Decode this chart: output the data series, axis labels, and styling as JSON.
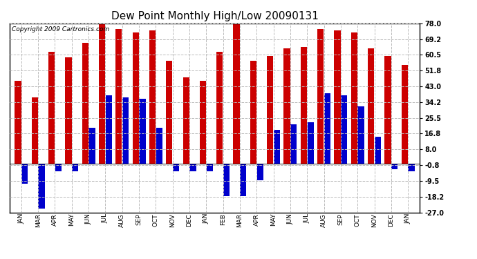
{
  "title": "Dew Point Monthly High/Low 20090131",
  "copyright": "Copyright 2009 Cartronics.com",
  "categories": [
    "JAN",
    "MAR",
    "APR",
    "MAY",
    "JUN",
    "JUL",
    "AUG",
    "SEP",
    "OCT",
    "NOV",
    "DEC",
    "JAN",
    "FEB",
    "MAR",
    "APR",
    "MAY",
    "JUN",
    "JUL",
    "AUG",
    "SEP",
    "OCT",
    "NOV",
    "DEC",
    "JAN"
  ],
  "high_values": [
    46,
    37,
    62,
    59,
    67,
    78,
    75,
    73,
    74,
    57,
    48,
    46,
    62,
    78,
    57,
    60,
    64,
    65,
    75,
    74,
    73,
    64,
    60,
    55
  ],
  "low_values": [
    -11,
    -25,
    -4,
    -4,
    20,
    38,
    37,
    36,
    20,
    -4,
    -4,
    -4,
    -18,
    -18,
    -9,
    19,
    22,
    23,
    39,
    38,
    32,
    15,
    -3,
    -4
  ],
  "bar_color_high": "#cc0000",
  "bar_color_low": "#0000cc",
  "background_color": "#ffffff",
  "grid_color": "#bbbbbb",
  "yticks": [
    -27.0,
    -18.2,
    -9.5,
    -0.8,
    8.0,
    16.8,
    25.5,
    34.2,
    43.0,
    51.8,
    60.5,
    69.2,
    78.0
  ],
  "ylim": [
    -27,
    78
  ],
  "title_fontsize": 11,
  "copyright_fontsize": 6.5,
  "bar_width": 0.38,
  "bar_gap": 0.0
}
